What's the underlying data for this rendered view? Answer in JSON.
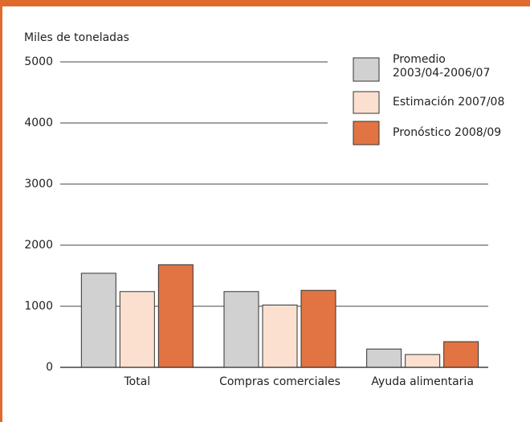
{
  "chart_data": {
    "type": "bar",
    "y_label": "Miles de toneladas",
    "categories": [
      "Total",
      "Compras comerciales",
      "Ayuda alimentaria"
    ],
    "series": [
      {
        "name": "Promedio 2003/04-2006/07",
        "color": "#d1d1d1",
        "values": [
          1540,
          1240,
          300
        ]
      },
      {
        "name": "Estimación 2007/08",
        "color": "#fbe0cf",
        "values": [
          1240,
          1020,
          210
        ]
      },
      {
        "name": "Pronóstico 2008/09",
        "color": "#e27443",
        "values": [
          1680,
          1260,
          420
        ]
      }
    ],
    "ylim": [
      0,
      5000
    ],
    "yticks": [
      0,
      1000,
      2000,
      3000,
      4000,
      5000
    ],
    "grid": true,
    "legend": "upper right"
  }
}
